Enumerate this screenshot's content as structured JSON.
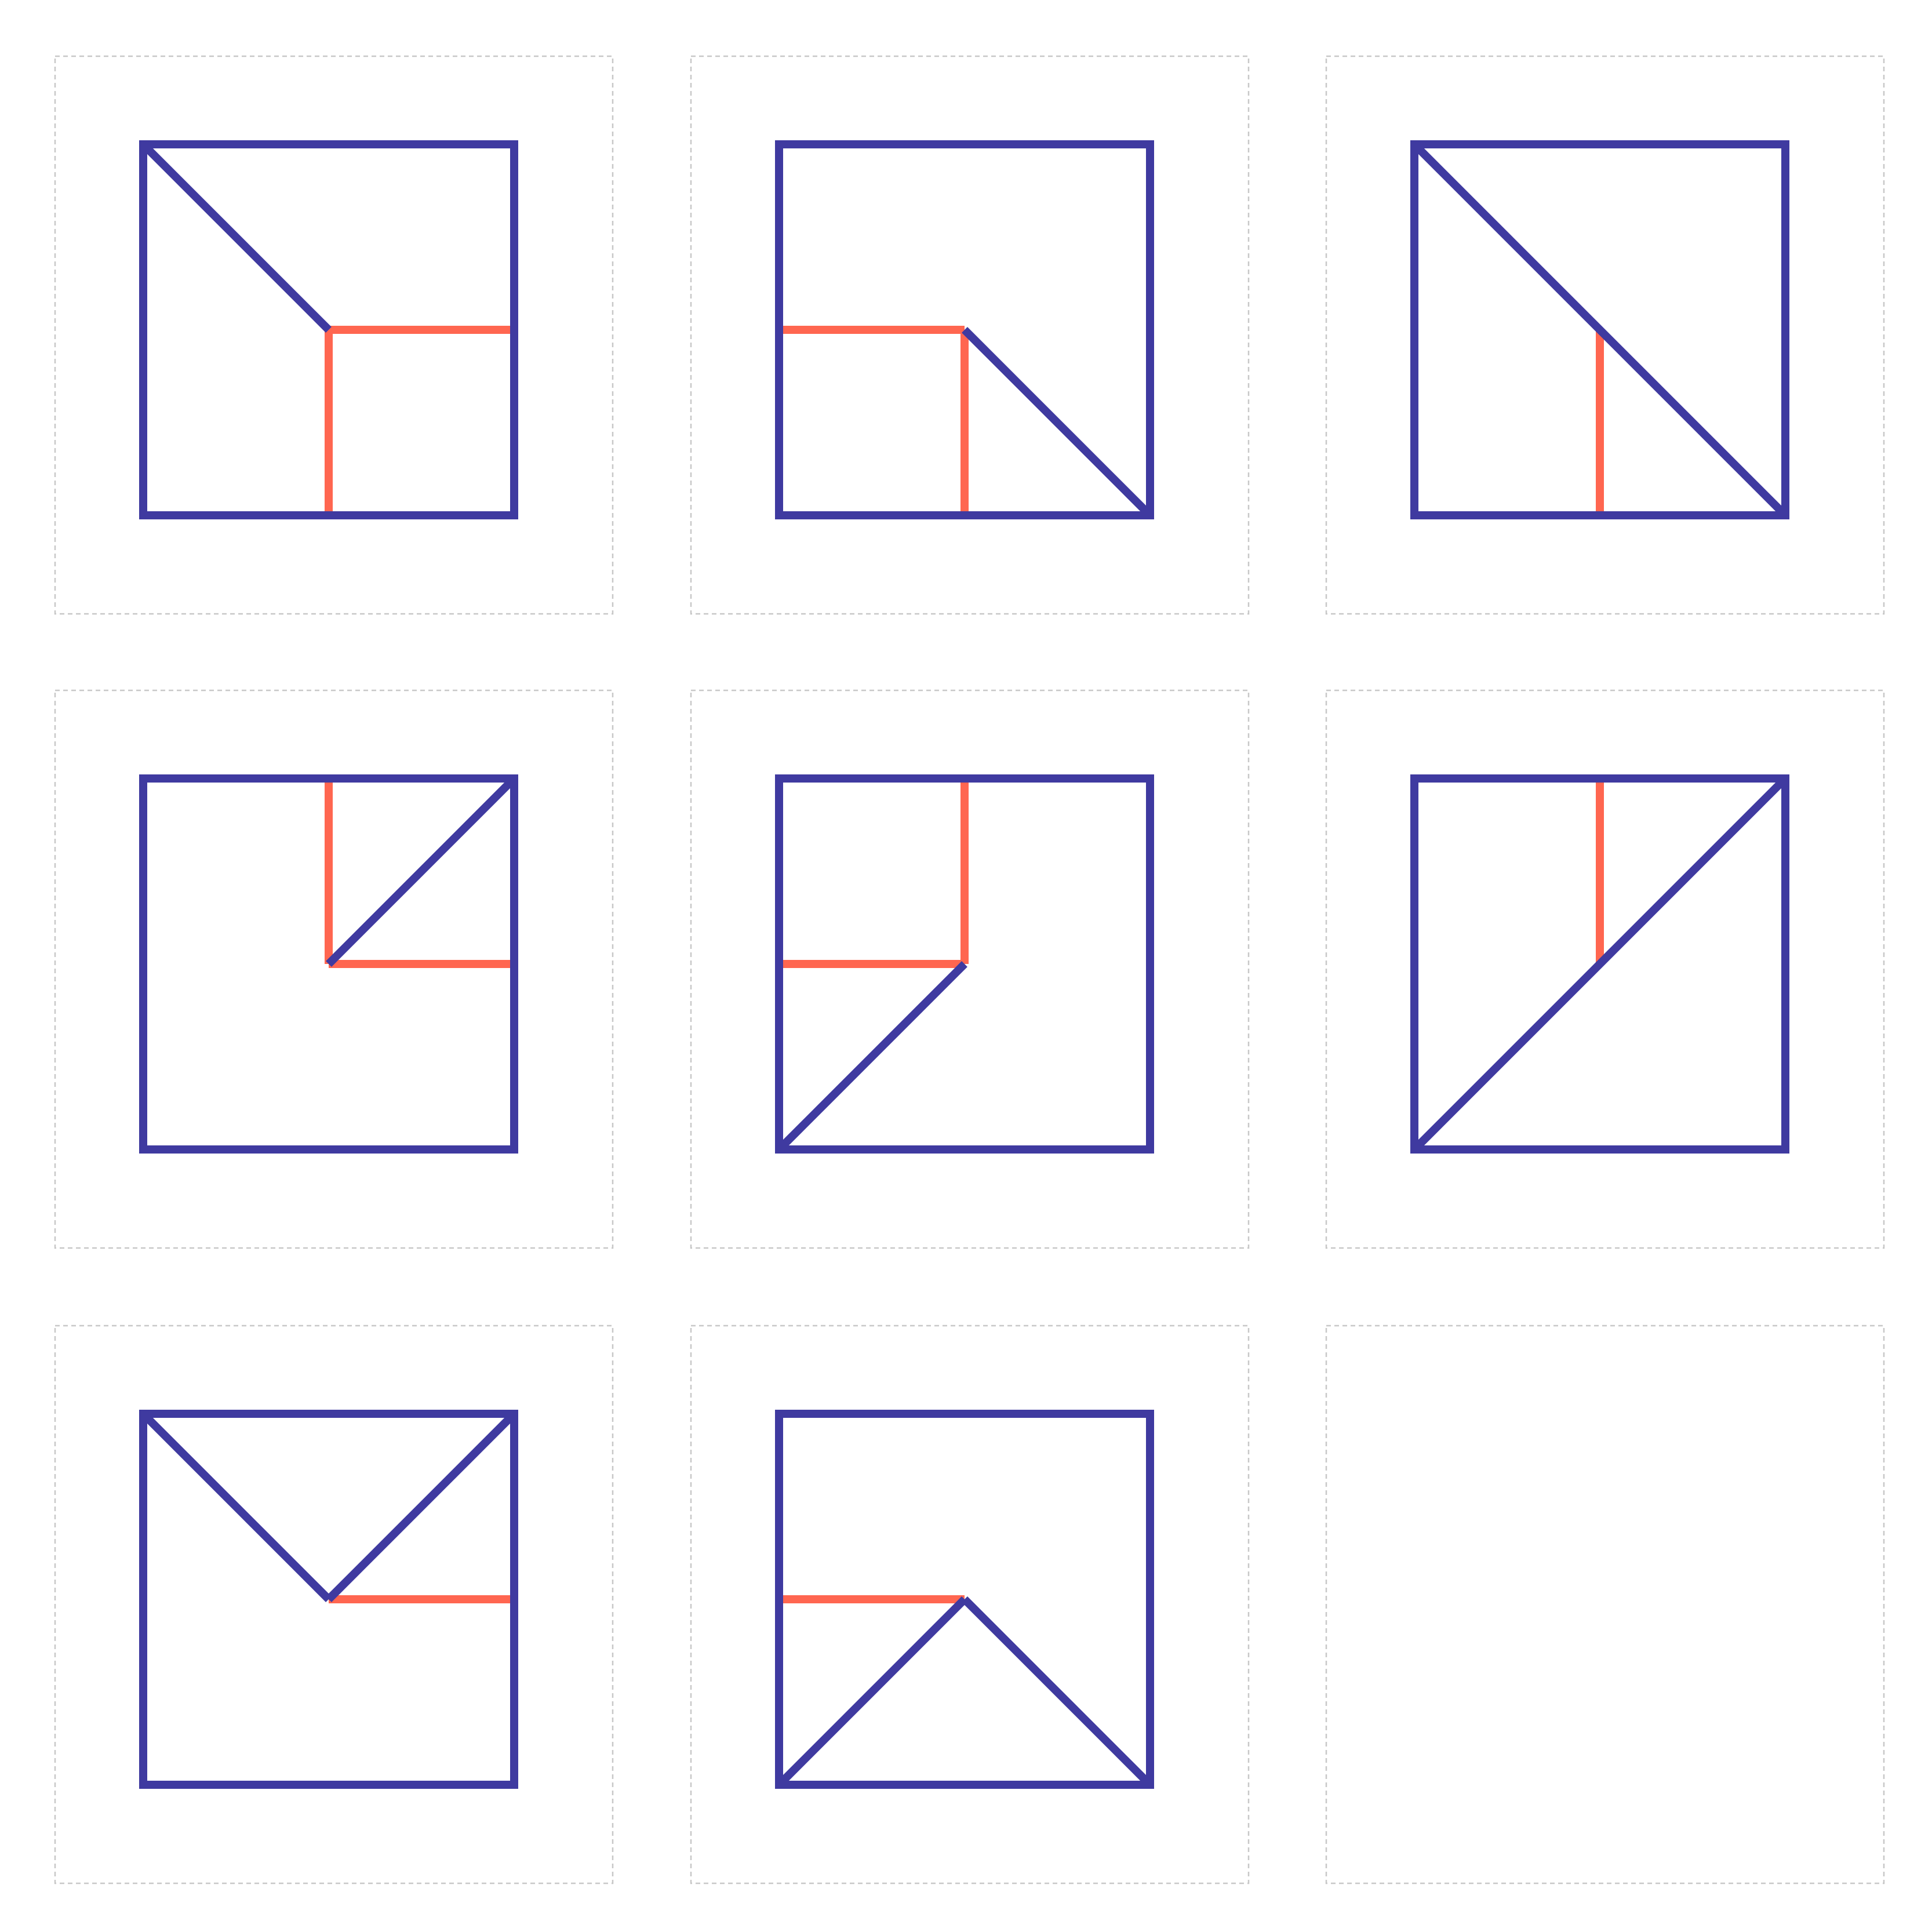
{
  "colors": {
    "square_stroke": "#3f3aa0",
    "fold_line": "#3f3aa0",
    "marker_line": "#ff6650",
    "panel_border": "#c8c8c8",
    "background": "#ffffff"
  },
  "panels": [
    {
      "id": "panel-1",
      "fold_lines": [
        [
          "top-left",
          "center"
        ]
      ],
      "marker_lines": [
        [
          "center",
          "right-mid"
        ],
        [
          "center",
          "bottom-mid"
        ]
      ]
    },
    {
      "id": "panel-2",
      "fold_lines": [
        [
          "center",
          "bottom-right"
        ]
      ],
      "marker_lines": [
        [
          "left-mid",
          "center"
        ],
        [
          "center",
          "bottom-mid"
        ]
      ]
    },
    {
      "id": "panel-3",
      "fold_lines": [
        [
          "top-left",
          "bottom-right"
        ]
      ],
      "marker_lines": [
        [
          "center",
          "bottom-mid"
        ]
      ]
    },
    {
      "id": "panel-4",
      "fold_lines": [
        [
          "center",
          "top-right"
        ]
      ],
      "marker_lines": [
        [
          "top-mid",
          "center"
        ],
        [
          "center",
          "right-mid"
        ]
      ]
    },
    {
      "id": "panel-5",
      "fold_lines": [
        [
          "bottom-left",
          "center"
        ]
      ],
      "marker_lines": [
        [
          "top-mid",
          "center"
        ],
        [
          "left-mid",
          "center"
        ]
      ]
    },
    {
      "id": "panel-6",
      "fold_lines": [
        [
          "bottom-left",
          "top-right"
        ]
      ],
      "marker_lines": [
        [
          "top-mid",
          "center"
        ]
      ]
    },
    {
      "id": "panel-7",
      "fold_lines": [
        [
          "top-left",
          "center"
        ],
        [
          "center",
          "top-right"
        ]
      ],
      "marker_lines": [
        [
          "center",
          "right-mid"
        ]
      ]
    },
    {
      "id": "panel-8",
      "fold_lines": [
        [
          "bottom-left",
          "center"
        ],
        [
          "center",
          "bottom-right"
        ]
      ],
      "marker_lines": [
        [
          "left-mid",
          "center"
        ]
      ]
    },
    {
      "id": "panel-9",
      "fold_lines": [],
      "marker_lines": []
    }
  ]
}
